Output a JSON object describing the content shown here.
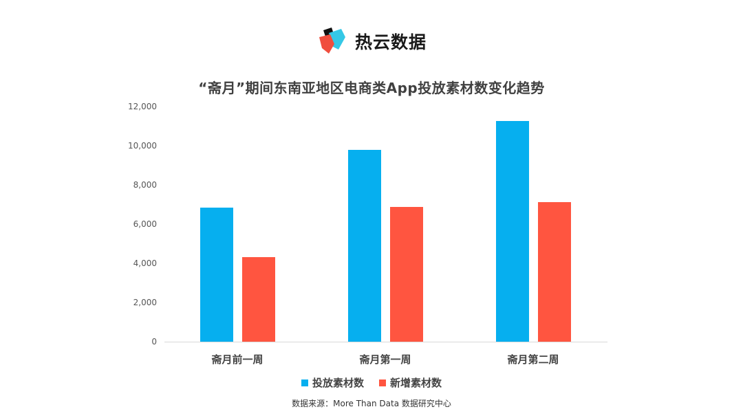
{
  "header": {
    "logo_icon": "reyun-cube-logo-icon",
    "brand_name": "热云数据"
  },
  "colors": {
    "series1": "#06AFEF",
    "series2": "#FF5540",
    "axis": "#d9d9d9",
    "text": "#404040"
  },
  "chart_data": {
    "type": "bar",
    "title": "“斋月”期间东南亚地区电商类App投放素材数变化趋势",
    "xlabel": "",
    "ylabel": "",
    "categories": [
      "斋月前一周",
      "斋月第一周",
      "斋月第二周"
    ],
    "series": [
      {
        "name": "投放素材数",
        "color": "#06AFEF",
        "values": [
          6840,
          9790,
          11260
        ]
      },
      {
        "name": "新增素材数",
        "color": "#FF5540",
        "values": [
          4320,
          6880,
          7120
        ]
      }
    ],
    "ylim": [
      0,
      12000
    ],
    "yticks": [
      "0",
      "2,000",
      "4,000",
      "6,000",
      "8,000",
      "10,000",
      "12,000"
    ],
    "grid": false,
    "legend_position": "bottom"
  },
  "footer": {
    "source": "数据来源：More Than Data 数据研究中心"
  }
}
